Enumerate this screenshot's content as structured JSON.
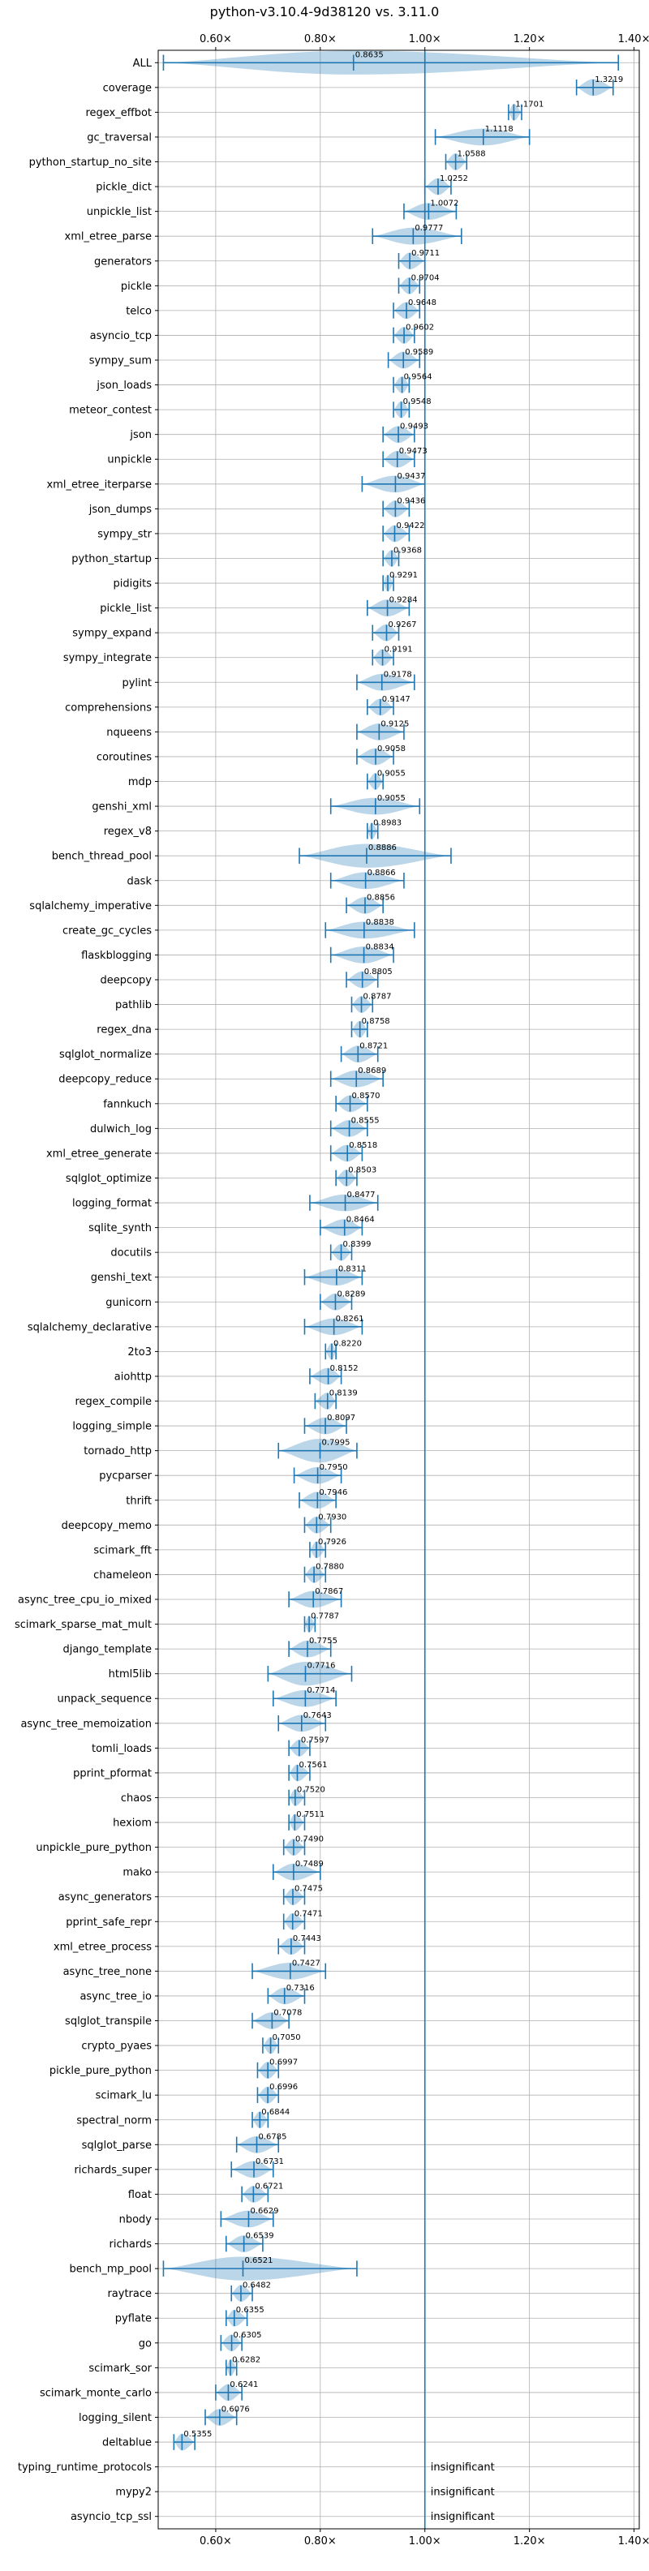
{
  "chart_data": {
    "type": "violin",
    "title": "python-v3.10.4-9d38120 vs. 3.11.0",
    "xlim": [
      0.49,
      1.41
    ],
    "xticks": [
      0.6,
      0.8,
      1.0,
      1.2,
      1.4
    ],
    "xtick_labels": [
      "0.60×",
      "0.80×",
      "1.00×",
      "1.20×",
      "1.40×"
    ],
    "reference_line": 1.0,
    "grid": true,
    "insignificant_text": "insignificant",
    "benchmarks": [
      {
        "name": "ALL",
        "label": "0.8635",
        "value": 0.8635,
        "min": 0.5,
        "max": 1.37,
        "wide": true
      },
      {
        "name": "coverage",
        "label": "1.3219",
        "value": 1.3219,
        "min": 1.29,
        "max": 1.36
      },
      {
        "name": "regex_effbot",
        "label": "1.1701",
        "value": 1.1701,
        "min": 1.16,
        "max": 1.185
      },
      {
        "name": "gc_traversal",
        "label": "1.1118",
        "value": 1.1118,
        "min": 1.02,
        "max": 1.2
      },
      {
        "name": "python_startup_no_site",
        "label": "1.0588",
        "value": 1.0588,
        "min": 1.04,
        "max": 1.08
      },
      {
        "name": "pickle_dict",
        "label": "1.0252",
        "value": 1.0252,
        "min": 1.0,
        "max": 1.05
      },
      {
        "name": "unpickle_list",
        "label": "1.0072",
        "value": 1.0072,
        "min": 0.96,
        "max": 1.06
      },
      {
        "name": "xml_etree_parse",
        "label": "0.9777",
        "value": 0.9777,
        "min": 0.9,
        "max": 1.07
      },
      {
        "name": "generators",
        "label": "0.9711",
        "value": 0.9711,
        "min": 0.95,
        "max": 1.0
      },
      {
        "name": "pickle",
        "label": "0.9704",
        "value": 0.9704,
        "min": 0.95,
        "max": 0.99
      },
      {
        "name": "telco",
        "label": "0.9648",
        "value": 0.9648,
        "min": 0.94,
        "max": 0.99
      },
      {
        "name": "asyncio_tcp",
        "label": "0.9602",
        "value": 0.9602,
        "min": 0.94,
        "max": 0.98
      },
      {
        "name": "sympy_sum",
        "label": "0.9589",
        "value": 0.9589,
        "min": 0.93,
        "max": 0.99
      },
      {
        "name": "json_loads",
        "label": "0.9564",
        "value": 0.9564,
        "min": 0.94,
        "max": 0.97
      },
      {
        "name": "meteor_contest",
        "label": "0.9548",
        "value": 0.9548,
        "min": 0.94,
        "max": 0.97
      },
      {
        "name": "json",
        "label": "0.9493",
        "value": 0.9493,
        "min": 0.92,
        "max": 0.98
      },
      {
        "name": "unpickle",
        "label": "0.9473",
        "value": 0.9473,
        "min": 0.92,
        "max": 0.98
      },
      {
        "name": "xml_etree_iterparse",
        "label": "0.9437",
        "value": 0.9437,
        "min": 0.88,
        "max": 1.0
      },
      {
        "name": "json_dumps",
        "label": "0.9436",
        "value": 0.9436,
        "min": 0.92,
        "max": 0.97
      },
      {
        "name": "sympy_str",
        "label": "0.9422",
        "value": 0.9422,
        "min": 0.92,
        "max": 0.97
      },
      {
        "name": "python_startup",
        "label": "0.9368",
        "value": 0.9368,
        "min": 0.92,
        "max": 0.95
      },
      {
        "name": "pidigits",
        "label": "0.9291",
        "value": 0.9291,
        "min": 0.92,
        "max": 0.94
      },
      {
        "name": "pickle_list",
        "label": "0.9284",
        "value": 0.9284,
        "min": 0.89,
        "max": 0.97
      },
      {
        "name": "sympy_expand",
        "label": "0.9267",
        "value": 0.9267,
        "min": 0.9,
        "max": 0.95
      },
      {
        "name": "sympy_integrate",
        "label": "0.9191",
        "value": 0.9191,
        "min": 0.9,
        "max": 0.94
      },
      {
        "name": "pylint",
        "label": "0.9178",
        "value": 0.9178,
        "min": 0.87,
        "max": 0.98
      },
      {
        "name": "comprehensions",
        "label": "0.9147",
        "value": 0.9147,
        "min": 0.89,
        "max": 0.94
      },
      {
        "name": "nqueens",
        "label": "0.9125",
        "value": 0.9125,
        "min": 0.87,
        "max": 0.96
      },
      {
        "name": "coroutines",
        "label": "0.9058",
        "value": 0.9058,
        "min": 0.87,
        "max": 0.94
      },
      {
        "name": "mdp",
        "label": "0.9055",
        "value": 0.9055,
        "min": 0.89,
        "max": 0.92
      },
      {
        "name": "genshi_xml",
        "label": "0.9055",
        "value": 0.9055,
        "min": 0.82,
        "max": 0.99
      },
      {
        "name": "regex_v8",
        "label": "0.8983",
        "value": 0.8983,
        "min": 0.89,
        "max": 0.91
      },
      {
        "name": "bench_thread_pool",
        "label": "0.8886",
        "value": 0.8886,
        "min": 0.76,
        "max": 1.05,
        "wide": true
      },
      {
        "name": "dask",
        "label": "0.8866",
        "value": 0.8866,
        "min": 0.82,
        "max": 0.96
      },
      {
        "name": "sqlalchemy_imperative",
        "label": "0.8856",
        "value": 0.8856,
        "min": 0.85,
        "max": 0.92
      },
      {
        "name": "create_gc_cycles",
        "label": "0.8838",
        "value": 0.8838,
        "min": 0.81,
        "max": 0.98
      },
      {
        "name": "flaskblogging",
        "label": "0.8834",
        "value": 0.8834,
        "min": 0.82,
        "max": 0.94
      },
      {
        "name": "deepcopy",
        "label": "0.8805",
        "value": 0.8805,
        "min": 0.85,
        "max": 0.91
      },
      {
        "name": "pathlib",
        "label": "0.8787",
        "value": 0.8787,
        "min": 0.86,
        "max": 0.9
      },
      {
        "name": "regex_dna",
        "label": "0.8758",
        "value": 0.8758,
        "min": 0.86,
        "max": 0.89
      },
      {
        "name": "sqlglot_normalize",
        "label": "0.8721",
        "value": 0.8721,
        "min": 0.84,
        "max": 0.91
      },
      {
        "name": "deepcopy_reduce",
        "label": "0.8689",
        "value": 0.8689,
        "min": 0.82,
        "max": 0.92
      },
      {
        "name": "fannkuch",
        "label": "0.8570",
        "value": 0.857,
        "min": 0.83,
        "max": 0.89
      },
      {
        "name": "dulwich_log",
        "label": "0.8555",
        "value": 0.8555,
        "min": 0.82,
        "max": 0.89
      },
      {
        "name": "xml_etree_generate",
        "label": "0.8518",
        "value": 0.8518,
        "min": 0.82,
        "max": 0.88
      },
      {
        "name": "sqlglot_optimize",
        "label": "0.8503",
        "value": 0.8503,
        "min": 0.83,
        "max": 0.87
      },
      {
        "name": "logging_format",
        "label": "0.8477",
        "value": 0.8477,
        "min": 0.78,
        "max": 0.91
      },
      {
        "name": "sqlite_synth",
        "label": "0.8464",
        "value": 0.8464,
        "min": 0.8,
        "max": 0.88
      },
      {
        "name": "docutils",
        "label": "0.8399",
        "value": 0.8399,
        "min": 0.82,
        "max": 0.86
      },
      {
        "name": "genshi_text",
        "label": "0.8311",
        "value": 0.8311,
        "min": 0.77,
        "max": 0.88
      },
      {
        "name": "gunicorn",
        "label": "0.8289",
        "value": 0.8289,
        "min": 0.8,
        "max": 0.86
      },
      {
        "name": "sqlalchemy_declarative",
        "label": "0.8261",
        "value": 0.8261,
        "min": 0.77,
        "max": 0.88
      },
      {
        "name": "2to3",
        "label": "0.8220",
        "value": 0.822,
        "min": 0.81,
        "max": 0.83
      },
      {
        "name": "aiohttp",
        "label": "0.8152",
        "value": 0.8152,
        "min": 0.78,
        "max": 0.84
      },
      {
        "name": "regex_compile",
        "label": "0.8139",
        "value": 0.8139,
        "min": 0.79,
        "max": 0.83
      },
      {
        "name": "logging_simple",
        "label": "0.8097",
        "value": 0.8097,
        "min": 0.77,
        "max": 0.85
      },
      {
        "name": "tornado_http",
        "label": "0.7995",
        "value": 0.7995,
        "min": 0.72,
        "max": 0.87,
        "wide": true
      },
      {
        "name": "pycparser",
        "label": "0.7950",
        "value": 0.795,
        "min": 0.75,
        "max": 0.84
      },
      {
        "name": "thrift",
        "label": "0.7946",
        "value": 0.7946,
        "min": 0.76,
        "max": 0.83
      },
      {
        "name": "deepcopy_memo",
        "label": "0.7930",
        "value": 0.793,
        "min": 0.77,
        "max": 0.82
      },
      {
        "name": "scimark_fft",
        "label": "0.7926",
        "value": 0.7926,
        "min": 0.78,
        "max": 0.81
      },
      {
        "name": "chameleon",
        "label": "0.7880",
        "value": 0.788,
        "min": 0.77,
        "max": 0.81
      },
      {
        "name": "async_tree_cpu_io_mixed",
        "label": "0.7867",
        "value": 0.7867,
        "min": 0.74,
        "max": 0.84
      },
      {
        "name": "scimark_sparse_mat_mult",
        "label": "0.7787",
        "value": 0.7787,
        "min": 0.77,
        "max": 0.79
      },
      {
        "name": "django_template",
        "label": "0.7755",
        "value": 0.7755,
        "min": 0.74,
        "max": 0.82
      },
      {
        "name": "html5lib",
        "label": "0.7716",
        "value": 0.7716,
        "min": 0.7,
        "max": 0.86,
        "wide": true
      },
      {
        "name": "unpack_sequence",
        "label": "0.7714",
        "value": 0.7714,
        "min": 0.71,
        "max": 0.83
      },
      {
        "name": "async_tree_memoization",
        "label": "0.7643",
        "value": 0.7643,
        "min": 0.72,
        "max": 0.81
      },
      {
        "name": "tomli_loads",
        "label": "0.7597",
        "value": 0.7597,
        "min": 0.74,
        "max": 0.78
      },
      {
        "name": "pprint_pformat",
        "label": "0.7561",
        "value": 0.7561,
        "min": 0.74,
        "max": 0.78
      },
      {
        "name": "chaos",
        "label": "0.7520",
        "value": 0.752,
        "min": 0.74,
        "max": 0.77
      },
      {
        "name": "hexiom",
        "label": "0.7511",
        "value": 0.7511,
        "min": 0.74,
        "max": 0.77
      },
      {
        "name": "unpickle_pure_python",
        "label": "0.7490",
        "value": 0.749,
        "min": 0.73,
        "max": 0.77
      },
      {
        "name": "mako",
        "label": "0.7489",
        "value": 0.7489,
        "min": 0.71,
        "max": 0.8
      },
      {
        "name": "async_generators",
        "label": "0.7475",
        "value": 0.7475,
        "min": 0.73,
        "max": 0.77
      },
      {
        "name": "pprint_safe_repr",
        "label": "0.7471",
        "value": 0.7471,
        "min": 0.73,
        "max": 0.77
      },
      {
        "name": "xml_etree_process",
        "label": "0.7443",
        "value": 0.7443,
        "min": 0.72,
        "max": 0.77
      },
      {
        "name": "async_tree_none",
        "label": "0.7427",
        "value": 0.7427,
        "min": 0.67,
        "max": 0.81
      },
      {
        "name": "async_tree_io",
        "label": "0.7316",
        "value": 0.7316,
        "min": 0.7,
        "max": 0.77
      },
      {
        "name": "sqlglot_transpile",
        "label": "0.7078",
        "value": 0.7078,
        "min": 0.67,
        "max": 0.74
      },
      {
        "name": "crypto_pyaes",
        "label": "0.7050",
        "value": 0.705,
        "min": 0.69,
        "max": 0.72
      },
      {
        "name": "pickle_pure_python",
        "label": "0.6997",
        "value": 0.6997,
        "min": 0.68,
        "max": 0.72
      },
      {
        "name": "scimark_lu",
        "label": "0.6996",
        "value": 0.6996,
        "min": 0.68,
        "max": 0.72
      },
      {
        "name": "spectral_norm",
        "label": "0.6844",
        "value": 0.6844,
        "min": 0.67,
        "max": 0.7
      },
      {
        "name": "sqlglot_parse",
        "label": "0.6785",
        "value": 0.6785,
        "min": 0.64,
        "max": 0.72
      },
      {
        "name": "richards_super",
        "label": "0.6731",
        "value": 0.6731,
        "min": 0.63,
        "max": 0.71
      },
      {
        "name": "float",
        "label": "0.6721",
        "value": 0.6721,
        "min": 0.65,
        "max": 0.7
      },
      {
        "name": "nbody",
        "label": "0.6629",
        "value": 0.6629,
        "min": 0.61,
        "max": 0.71
      },
      {
        "name": "richards",
        "label": "0.6539",
        "value": 0.6539,
        "min": 0.62,
        "max": 0.69
      },
      {
        "name": "bench_mp_pool",
        "label": "0.6521",
        "value": 0.6521,
        "min": 0.5,
        "max": 0.87,
        "wide": true
      },
      {
        "name": "raytrace",
        "label": "0.6482",
        "value": 0.6482,
        "min": 0.63,
        "max": 0.67
      },
      {
        "name": "pyflate",
        "label": "0.6355",
        "value": 0.6355,
        "min": 0.62,
        "max": 0.66
      },
      {
        "name": "go",
        "label": "0.6305",
        "value": 0.6305,
        "min": 0.61,
        "max": 0.65
      },
      {
        "name": "scimark_sor",
        "label": "0.6282",
        "value": 0.6282,
        "min": 0.62,
        "max": 0.64
      },
      {
        "name": "scimark_monte_carlo",
        "label": "0.6241",
        "value": 0.6241,
        "min": 0.6,
        "max": 0.65
      },
      {
        "name": "logging_silent",
        "label": "0.6076",
        "value": 0.6076,
        "min": 0.58,
        "max": 0.64
      },
      {
        "name": "deltablue",
        "label": "0.5355",
        "value": 0.5355,
        "min": 0.52,
        "max": 0.56
      },
      {
        "name": "typing_runtime_protocols",
        "label": "insignificant",
        "insignificant": true
      },
      {
        "name": "mypy2",
        "label": "insignificant",
        "insignificant": true
      },
      {
        "name": "asyncio_tcp_ssl",
        "label": "insignificant",
        "insignificant": true
      }
    ]
  }
}
